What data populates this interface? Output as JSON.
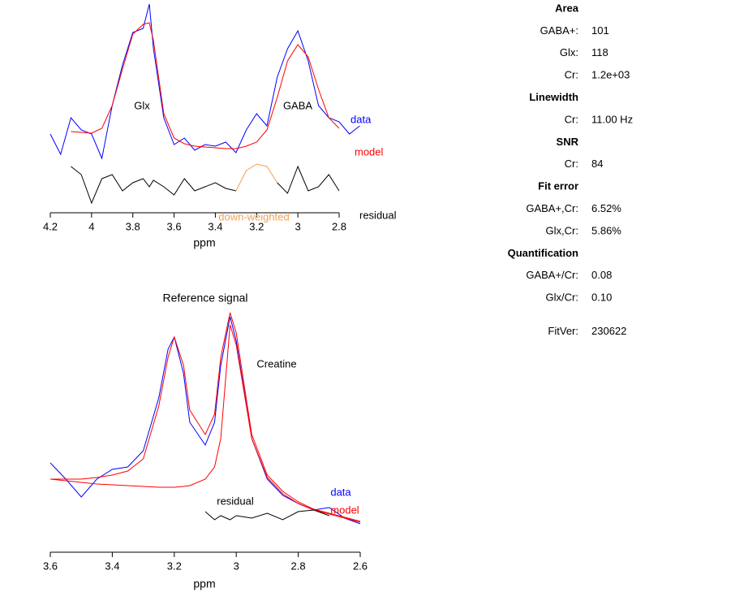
{
  "chart_data": [
    {
      "type": "line",
      "x": [
        4.2,
        4.15,
        4.1,
        4.05,
        4.0,
        3.95,
        3.9,
        3.85,
        3.8,
        3.75,
        3.72,
        3.7,
        3.65,
        3.6,
        3.55,
        3.5,
        3.45,
        3.4,
        3.35,
        3.3,
        3.25,
        3.2,
        3.15,
        3.1,
        3.05,
        3.0,
        2.95,
        2.9,
        2.85,
        2.8,
        2.75,
        2.7
      ],
      "series": [
        {
          "name": "data",
          "color": "#0000ff",
          "values": [
            95,
            70,
            115,
            100,
            95,
            65,
            130,
            180,
            220,
            225,
            255,
            200,
            115,
            82,
            90,
            75,
            82,
            80,
            85,
            72,
            100,
            120,
            105,
            165,
            200,
            222,
            185,
            130,
            115,
            110,
            95,
            105
          ]
        },
        {
          "name": "model",
          "color": "#ff0000",
          "values": [
            null,
            null,
            98,
            97,
            96,
            102,
            130,
            175,
            218,
            230,
            232,
            210,
            120,
            90,
            83,
            80,
            79,
            78,
            77,
            77,
            80,
            85,
            100,
            140,
            185,
            205,
            190,
            150,
            115,
            102,
            null,
            null
          ]
        },
        {
          "name": "residual",
          "color": "#000000",
          "values": [
            null,
            null,
            55,
            45,
            10,
            40,
            45,
            25,
            35,
            40,
            30,
            38,
            30,
            20,
            40,
            25,
            30,
            35,
            28,
            25,
            null,
            null,
            null,
            35,
            22,
            55,
            25,
            30,
            45,
            25,
            null,
            null
          ]
        },
        {
          "name": "down-weighted",
          "color": "#f4a050",
          "values": [
            null,
            null,
            null,
            null,
            null,
            null,
            null,
            null,
            null,
            null,
            null,
            null,
            null,
            null,
            null,
            null,
            null,
            null,
            null,
            25,
            50,
            58,
            55,
            35,
            null,
            null,
            null,
            null,
            null,
            null,
            null,
            null
          ]
        }
      ],
      "annotations": [
        "Glx",
        "GABA"
      ],
      "x_label": "ppm",
      "xlim": [
        4.2,
        2.8
      ],
      "xticks": [
        4.2,
        4,
        3.8,
        3.6,
        3.4,
        3.2,
        3,
        2.8
      ]
    },
    {
      "type": "line",
      "title": "Reference signal",
      "x": [
        3.6,
        3.55,
        3.5,
        3.45,
        3.4,
        3.35,
        3.3,
        3.25,
        3.22,
        3.2,
        3.17,
        3.15,
        3.1,
        3.07,
        3.05,
        3.02,
        3.0,
        2.95,
        2.9,
        2.85,
        2.8,
        2.75,
        2.7,
        2.65,
        2.6
      ],
      "series": [
        {
          "name": "data",
          "color": "#0000ff",
          "values": [
            110,
            90,
            68,
            90,
            102,
            105,
            125,
            190,
            250,
            265,
            220,
            160,
            132,
            160,
            230,
            290,
            260,
            140,
            90,
            70,
            60,
            52,
            55,
            42,
            35
          ]
        },
        {
          "name": "model",
          "color": "#ff0000",
          "values": [
            90,
            90,
            90,
            92,
            95,
            100,
            115,
            180,
            240,
            265,
            230,
            175,
            145,
            170,
            240,
            295,
            270,
            145,
            95,
            75,
            62,
            53,
            48,
            43,
            38
          ]
        },
        {
          "color": "#ff0000",
          "values": [
            90,
            88,
            86,
            84,
            83,
            82,
            81,
            80,
            80,
            80,
            81,
            82,
            90,
            105,
            140,
            280,
            255,
            140,
            92,
            72,
            60,
            52,
            47,
            42,
            37
          ]
        },
        {
          "name": "residual",
          "color": "#000000",
          "values": [
            null,
            null,
            null,
            null,
            null,
            null,
            null,
            null,
            null,
            null,
            null,
            null,
            50,
            40,
            45,
            40,
            45,
            42,
            48,
            40,
            50,
            52,
            45,
            null,
            null
          ]
        }
      ],
      "annotations": [
        "Creatine"
      ],
      "x_label": "ppm",
      "xlim": [
        3.6,
        2.6
      ],
      "xticks": [
        3.6,
        3.4,
        3.2,
        3,
        2.8,
        2.6
      ]
    }
  ],
  "results": [
    {
      "heading": "Area",
      "rows": [
        [
          "GABA+:",
          "101"
        ],
        [
          "Glx:",
          "118"
        ],
        [
          "Cr:",
          "1.2e+03"
        ]
      ]
    },
    {
      "heading": "Linewidth",
      "rows": [
        [
          "Cr:",
          "11.00 Hz"
        ]
      ]
    },
    {
      "heading": "SNR",
      "rows": [
        [
          "Cr:",
          "84"
        ]
      ]
    },
    {
      "heading": "Fit error",
      "rows": [
        [
          "GABA+,Cr:",
          "6.52%"
        ],
        [
          "Glx,Cr:",
          "5.86%"
        ]
      ]
    },
    {
      "heading": "Quantification",
      "rows": [
        [
          "GABA+/Cr:",
          "0.08"
        ],
        [
          "Glx/Cr:",
          "0.10"
        ]
      ]
    },
    {
      "rows": [
        [
          "FitVer:",
          "230622"
        ]
      ]
    }
  ]
}
